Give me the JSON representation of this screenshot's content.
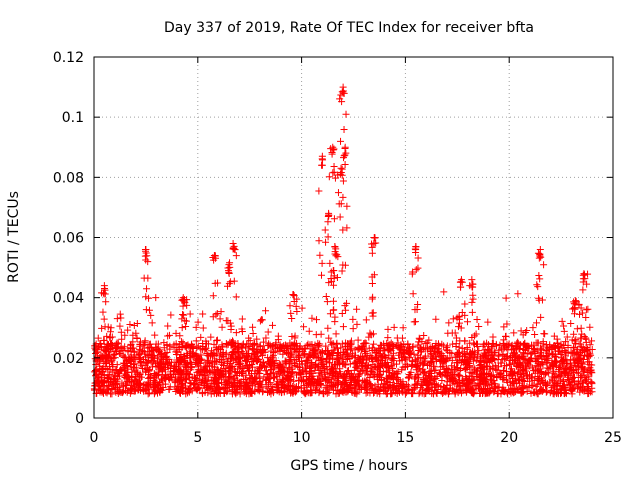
{
  "chart_data": {
    "type": "scatter",
    "title": "Day 337 of 2019, Rate Of TEC Index for receiver bfta",
    "xlabel": "GPS time / hours",
    "ylabel": "ROTI / TECUs",
    "xlim": [
      0,
      25
    ],
    "ylim": [
      0,
      0.12
    ],
    "xticks": [
      "0",
      "5",
      "10",
      "15",
      "20",
      "25"
    ],
    "xtick_values": [
      0,
      5,
      10,
      15,
      20,
      25
    ],
    "yticks": [
      "0",
      "0.02",
      "0.04",
      "0.06",
      "0.08",
      "0.1",
      "0.12"
    ],
    "ytick_values": [
      0,
      0.02,
      0.04,
      0.06,
      0.08,
      0.1,
      0.12
    ],
    "grid": true,
    "marker": "plus",
    "color": "#ff0000",
    "data_extent_hours": [
      0,
      24
    ],
    "baseline_band": [
      0.008,
      0.025
    ],
    "peaks": [
      {
        "x": 0.5,
        "y": 0.044
      },
      {
        "x": 2.5,
        "y": 0.056
      },
      {
        "x": 4.3,
        "y": 0.04
      },
      {
        "x": 5.8,
        "y": 0.054
      },
      {
        "x": 6.5,
        "y": 0.051
      },
      {
        "x": 6.7,
        "y": 0.058
      },
      {
        "x": 9.6,
        "y": 0.041
      },
      {
        "x": 11.0,
        "y": 0.087
      },
      {
        "x": 11.3,
        "y": 0.068
      },
      {
        "x": 11.5,
        "y": 0.09
      },
      {
        "x": 11.6,
        "y": 0.057
      },
      {
        "x": 11.9,
        "y": 0.083
      },
      {
        "x": 12.0,
        "y": 0.11
      },
      {
        "x": 12.1,
        "y": 0.09
      },
      {
        "x": 13.5,
        "y": 0.06
      },
      {
        "x": 15.5,
        "y": 0.057
      },
      {
        "x": 17.7,
        "y": 0.046
      },
      {
        "x": 18.2,
        "y": 0.046
      },
      {
        "x": 21.5,
        "y": 0.056
      },
      {
        "x": 23.2,
        "y": 0.039
      },
      {
        "x": 23.6,
        "y": 0.048
      }
    ]
  }
}
